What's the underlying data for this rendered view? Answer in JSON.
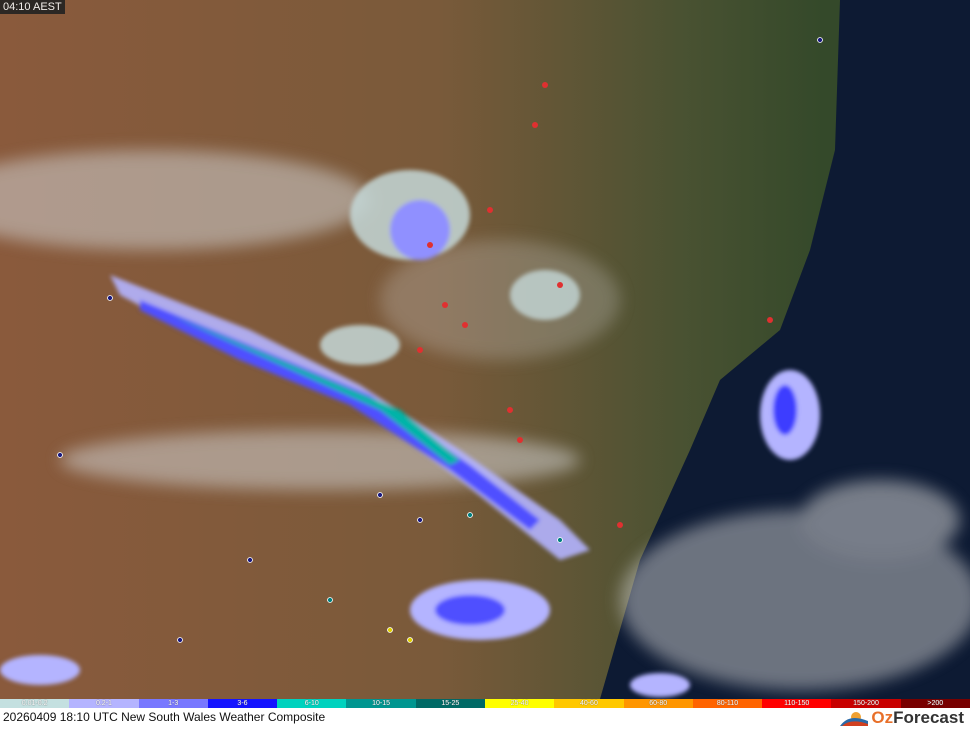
{
  "map": {
    "local_time": "04:10 AEST",
    "caption": "20260409 18:10 UTC New South Wales Weather Composite",
    "brand": {
      "prefix": "Oz",
      "suffix": "Forecast"
    },
    "colors": {
      "land_west": "#8a5a3c",
      "land_east": "#3d5230",
      "ocean": "#0d1a33",
      "cloud": "#d8d8d8"
    },
    "legend": [
      {
        "label": "0.01-0.2",
        "color": "#c4e0e0"
      },
      {
        "label": "0.2-1",
        "color": "#b4b4ff"
      },
      {
        "label": "1-3",
        "color": "#7878ff"
      },
      {
        "label": "3-6",
        "color": "#1414ff"
      },
      {
        "label": "6-10",
        "color": "#00d2be"
      },
      {
        "label": "10-15",
        "color": "#009690"
      },
      {
        "label": "15-25",
        "color": "#006a66"
      },
      {
        "label": "25-40",
        "color": "#ffff00"
      },
      {
        "label": "40-60",
        "color": "#ffc800"
      },
      {
        "label": "60-80",
        "color": "#ff9600"
      },
      {
        "label": "80-110",
        "color": "#ff6400"
      },
      {
        "label": "110-150",
        "color": "#ff0000"
      },
      {
        "label": "150-200",
        "color": "#c80000"
      },
      {
        "label": ">200",
        "color": "#780000"
      }
    ]
  }
}
